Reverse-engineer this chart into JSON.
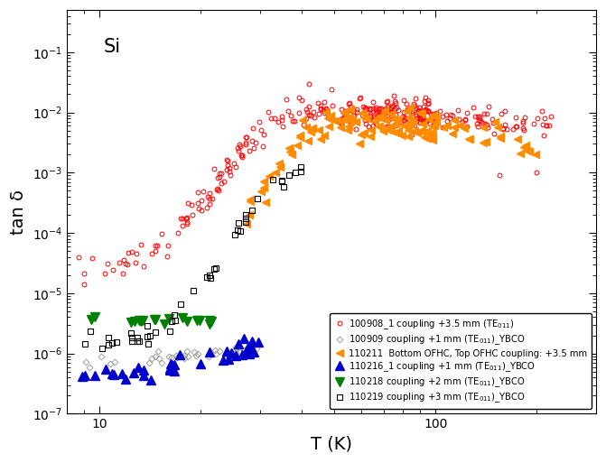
{
  "title": "Si",
  "xlabel": "T (K)",
  "ylabel": "tan δ",
  "xlim": [
    8,
    300
  ],
  "ylim": [
    1e-07,
    0.5
  ],
  "legend_entries": [
    "100908_1 coupling +3.5 mm (TE$_{011}$)",
    "100909 coupling +1 mm (TE$_{011}$)_YBCO",
    "110211  Bottom OFHC, Top OFHC coupling: +3.5 mm",
    "110216_1 coupling +1 mm (TE$_{011}$)_YBCO",
    "110218 coupling +2 mm (TE$_{011}$)_YBCO",
    "110219 coupling +3 mm (TE$_{011}$)_YBCO"
  ],
  "colors": [
    "#FF0000",
    "#A0A0A0",
    "#FF8C00",
    "#0000CC",
    "#008000",
    "#000000"
  ],
  "figsize": [
    6.71,
    5.13
  ],
  "dpi": 100
}
